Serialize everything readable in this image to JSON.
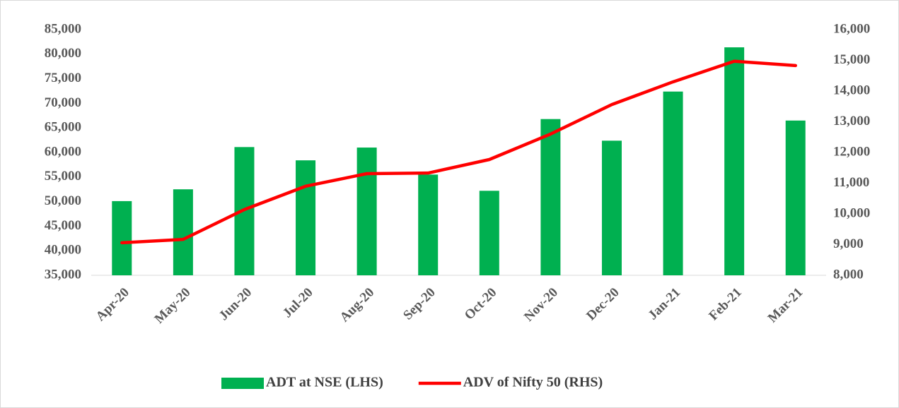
{
  "chart_data": {
    "type": "bar_line",
    "categories": [
      "Apr-20",
      "May-20",
      "Jun-20",
      "Jul-20",
      "Aug-20",
      "Sep-20",
      "Oct-20",
      "Nov-20",
      "Dec-20",
      "Jan-21",
      "Feb-21",
      "Mar-21"
    ],
    "series": [
      {
        "name": "ADT at NSE (LHS)",
        "type": "bar",
        "color": "#00b050",
        "axis": "y",
        "values": [
          50100,
          52500,
          61100,
          58400,
          61000,
          55500,
          52200,
          66800,
          62400,
          72400,
          81400,
          66500
        ]
      },
      {
        "name": "ADV of Nifty 50 (RHS)",
        "type": "line",
        "color": "#ff0000",
        "axis": "y2",
        "values": [
          9060,
          9170,
          10140,
          10900,
          11310,
          11330,
          11770,
          12600,
          13560,
          14300,
          14970,
          14830
        ]
      }
    ],
    "ylim": [
      35000,
      85000
    ],
    "yticks": [
      {
        "value": 35000,
        "label": "35,000"
      },
      {
        "value": 40000,
        "label": "40,000"
      },
      {
        "value": 45000,
        "label": "45,000"
      },
      {
        "value": 50000,
        "label": "50,000"
      },
      {
        "value": 55000,
        "label": "55,000"
      },
      {
        "value": 60000,
        "label": "60,000"
      },
      {
        "value": 65000,
        "label": "65,000"
      },
      {
        "value": 70000,
        "label": "70,000"
      },
      {
        "value": 75000,
        "label": "75,000"
      },
      {
        "value": 80000,
        "label": "80,000"
      },
      {
        "value": 85000,
        "label": "85,000"
      }
    ],
    "y2lim": [
      8000,
      16000
    ],
    "y2ticks": [
      {
        "value": 8000,
        "label": "8,000"
      },
      {
        "value": 9000,
        "label": "9,000"
      },
      {
        "value": 10000,
        "label": "10,000"
      },
      {
        "value": 11000,
        "label": "11,000"
      },
      {
        "value": 12000,
        "label": "12,000"
      },
      {
        "value": 13000,
        "label": "13,000"
      },
      {
        "value": 14000,
        "label": "14,000"
      },
      {
        "value": 15000,
        "label": "15,000"
      },
      {
        "value": 16000,
        "label": "16,000"
      }
    ],
    "legend": "bottom"
  }
}
